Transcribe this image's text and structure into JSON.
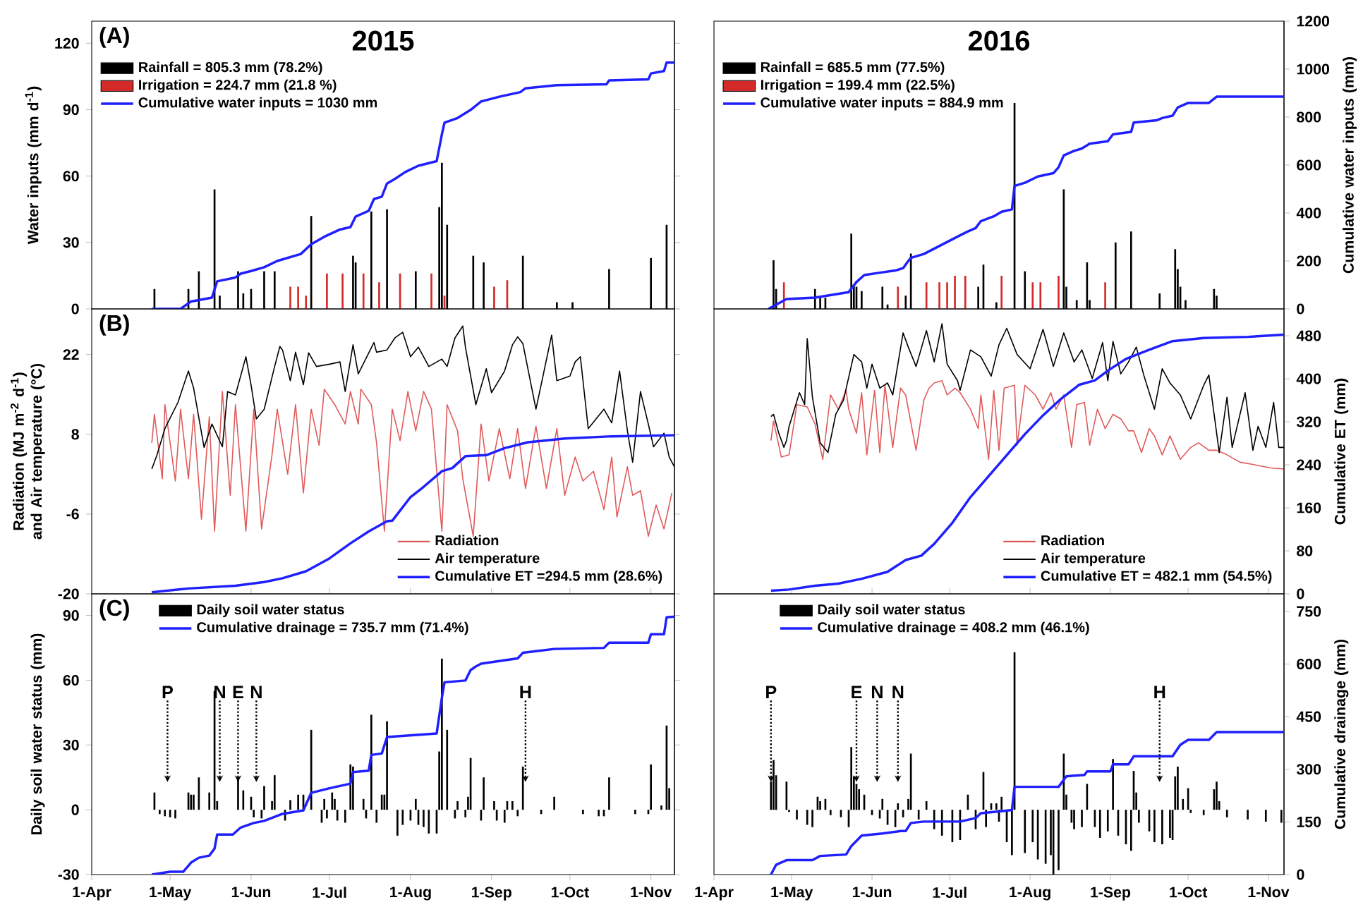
{
  "chart_data": [
    {
      "type": "bar",
      "title": "2015",
      "annotations": [
        "(A)"
      ],
      "ylabel": "Water inputs (mm d$^{-1}$)",
      "xlim": [
        "2015-04-01",
        "2015-11-10"
      ],
      "ylim": [
        0,
        130
      ],
      "yticks": [
        0,
        30,
        60,
        90,
        120
      ],
      "y2lim": [
        0,
        1200
      ],
      "tick_labels": "y",
      "legend": "top left",
      "series": [
        {
          "name": "Rainfall = 805.3 mm (78.2%)",
          "color": "#000000",
          "x": [
            "2015-04-25",
            "2015-05-08",
            "2015-05-12",
            "2015-05-18",
            "2015-05-20",
            "2015-05-27",
            "2015-05-29",
            "2015-06-01",
            "2015-06-06",
            "2015-06-10",
            "2015-06-24",
            "2015-07-10",
            "2015-07-11",
            "2015-07-17",
            "2015-07-23",
            "2015-08-03",
            "2015-08-12",
            "2015-08-13",
            "2015-08-15",
            "2015-08-25",
            "2015-08-29",
            "2015-09-13",
            "2015-09-26",
            "2015-10-02",
            "2015-10-16",
            "2015-11-01",
            "2015-11-07"
          ],
          "values": [
            9,
            9,
            17,
            54,
            6,
            17,
            7,
            9,
            17,
            17,
            42,
            24,
            21,
            44,
            45,
            17,
            46,
            66,
            38,
            24,
            21,
            24,
            3,
            3,
            18,
            23,
            38
          ]
        },
        {
          "name": "Irrigation = 224.7 mm (21.8 %)",
          "color": "#d42a2a",
          "x": [
            "2015-06-16",
            "2015-06-19",
            "2015-06-22",
            "2015-06-30",
            "2015-07-06",
            "2015-07-14",
            "2015-07-20",
            "2015-07-28",
            "2015-08-09",
            "2015-08-14",
            "2015-09-02",
            "2015-09-07"
          ],
          "values": [
            10,
            10,
            6,
            16,
            16,
            16,
            12,
            16,
            16,
            6,
            10,
            13
          ]
        },
        {
          "name": "Cumulative water inputs = 1030 mm",
          "type": "line",
          "axis": "y2",
          "color": "#1f1fff",
          "x": [
            "2015-04-24",
            "2015-05-05",
            "2015-05-09",
            "2015-05-17",
            "2015-05-19",
            "2015-05-26",
            "2015-05-28",
            "2015-06-01",
            "2015-06-06",
            "2015-06-11",
            "2015-06-20",
            "2015-06-24",
            "2015-06-29",
            "2015-07-05",
            "2015-07-09",
            "2015-07-11",
            "2015-07-16",
            "2015-07-18",
            "2015-07-21",
            "2015-07-23",
            "2015-07-26",
            "2015-07-30",
            "2015-08-04",
            "2015-08-11",
            "2015-08-13",
            "2015-08-14",
            "2015-08-19",
            "2015-08-24",
            "2015-08-28",
            "2015-09-04",
            "2015-09-12",
            "2015-09-14",
            "2015-09-26",
            "2015-10-15",
            "2015-10-16",
            "2015-10-31",
            "2015-11-01",
            "2015-11-06",
            "2015-11-07",
            "2015-11-10"
          ],
          "values": [
            0,
            0,
            31,
            47,
            115,
            131,
            147,
            158,
            174,
            200,
            229,
            270,
            301,
            331,
            341,
            385,
            409,
            458,
            468,
            523,
            542,
            571,
            597,
            616,
            728,
            777,
            796,
            830,
            865,
            885,
            904,
            920,
            933,
            937,
            953,
            957,
            982,
            992,
            1027,
            1027
          ]
        }
      ]
    },
    {
      "type": "bar",
      "title": "2016",
      "y2label": "Cumulative water inputs (mm)",
      "xlim": [
        "2016-04-01",
        "2016-11-07"
      ],
      "ylim": [
        0,
        130
      ],
      "y2lim": [
        0,
        1200
      ],
      "y2ticks": [
        0,
        200,
        400,
        600,
        800,
        1000,
        1200
      ],
      "tick_labels": "y2",
      "legend": "top left",
      "series": [
        {
          "name": "Rainfall = 685.5 mm (77.5%)",
          "color": "#000000",
          "x": [
            "2016-04-24",
            "2016-04-25",
            "2016-05-10",
            "2016-05-12",
            "2016-05-14",
            "2016-05-24",
            "2016-05-25",
            "2016-05-26",
            "2016-05-28",
            "2016-06-05",
            "2016-06-07",
            "2016-06-14",
            "2016-06-16",
            "2016-07-12",
            "2016-07-14",
            "2016-07-19",
            "2016-07-26",
            "2016-07-30",
            "2016-08-14",
            "2016-08-15",
            "2016-08-19",
            "2016-08-23",
            "2016-08-24",
            "2016-09-03",
            "2016-09-09",
            "2016-09-20",
            "2016-09-26",
            "2016-09-27",
            "2016-09-28",
            "2016-09-30",
            "2016-10-11",
            "2016-10-12"
          ],
          "values": [
            22,
            9,
            9,
            5,
            5,
            34,
            11,
            10,
            8,
            10,
            2,
            6,
            25,
            10,
            20,
            3,
            93,
            17,
            54,
            10,
            4,
            21,
            4,
            30,
            35,
            7,
            27,
            18,
            10,
            4,
            9,
            6
          ]
        },
        {
          "name": "Irrigation = 199.4 mm (22.5%)",
          "color": "#d42a2a",
          "x": [
            "2016-04-28",
            "2016-06-11",
            "2016-06-22",
            "2016-06-27",
            "2016-06-30",
            "2016-07-03",
            "2016-07-07",
            "2016-07-21",
            "2016-08-02",
            "2016-08-05",
            "2016-08-12",
            "2016-08-30"
          ],
          "values": [
            12,
            10,
            12,
            12,
            12,
            15,
            15,
            15,
            12,
            12,
            15,
            12
          ]
        },
        {
          "name": "Cumulative water inputs = 884.9 mm",
          "type": "line",
          "axis": "y2",
          "color": "#1f1fff",
          "x": [
            "2016-04-22",
            "2016-04-29",
            "2016-05-10",
            "2016-05-23",
            "2016-05-26",
            "2016-05-29",
            "2016-06-04",
            "2016-06-10",
            "2016-06-13",
            "2016-06-15",
            "2016-06-16",
            "2016-06-21",
            "2016-06-28",
            "2016-07-05",
            "2016-07-08",
            "2016-07-11",
            "2016-07-13",
            "2016-07-18",
            "2016-07-21",
            "2016-07-25",
            "2016-07-26",
            "2016-07-30",
            "2016-08-04",
            "2016-08-10",
            "2016-08-12",
            "2016-08-14",
            "2016-08-18",
            "2016-08-21",
            "2016-08-24",
            "2016-08-31",
            "2016-09-02",
            "2016-09-09",
            "2016-09-10",
            "2016-09-19",
            "2016-09-21",
            "2016-09-25",
            "2016-09-27",
            "2016-10-01",
            "2016-10-09",
            "2016-10-12",
            "2016-11-07"
          ],
          "values": [
            0,
            41,
            47,
            70,
            112,
            141,
            151,
            160,
            170,
            200,
            213,
            229,
            268,
            307,
            323,
            337,
            366,
            386,
            405,
            415,
            513,
            526,
            552,
            566,
            591,
            640,
            659,
            669,
            689,
            699,
            728,
            738,
            777,
            787,
            796,
            806,
            840,
            859,
            859,
            885,
            885
          ]
        }
      ]
    },
    {
      "type": "line",
      "annotations": [
        "(B)"
      ],
      "ylabel": "Radiation (MJ m$^{-2}$ d$^{-1}$) and Air temperature (°C)",
      "xlim": [
        "2015-04-01",
        "2015-11-10"
      ],
      "ylim": [
        -20,
        30
      ],
      "yticks": [
        -20,
        -6,
        8,
        22
      ],
      "y2lim": [
        0,
        530
      ],
      "tick_labels": "y",
      "legend": "bottom right",
      "series": [
        {
          "name": "Radiation",
          "color": "#e05a5a",
          "x": [
            "2015-04-24",
            "2015-04-25",
            "2015-04-28",
            "2015-04-29",
            "2015-05-03",
            "2015-05-05",
            "2015-05-08",
            "2015-05-10",
            "2015-05-13",
            "2015-05-16",
            "2015-05-18",
            "2015-05-21",
            "2015-05-24",
            "2015-05-26",
            "2015-05-30",
            "2015-06-02",
            "2015-06-05",
            "2015-06-09",
            "2015-06-11",
            "2015-06-15",
            "2015-06-18",
            "2015-06-21",
            "2015-06-24",
            "2015-06-27",
            "2015-06-29",
            "2015-07-03",
            "2015-07-07",
            "2015-07-09",
            "2015-07-12",
            "2015-07-13",
            "2015-07-17",
            "2015-07-19",
            "2015-07-22",
            "2015-07-25",
            "2015-07-28",
            "2015-07-31",
            "2015-08-03",
            "2015-08-06",
            "2015-08-09",
            "2015-08-13",
            "2015-08-15",
            "2015-08-19",
            "2015-08-21",
            "2015-08-25",
            "2015-08-28",
            "2015-08-31",
            "2015-09-04",
            "2015-09-08",
            "2015-09-11",
            "2015-09-14",
            "2015-09-18",
            "2015-09-22",
            "2015-09-26",
            "2015-09-29",
            "2015-10-03",
            "2015-10-06",
            "2015-10-10",
            "2015-10-14",
            "2015-10-17",
            "2015-10-19",
            "2015-10-23",
            "2015-10-25",
            "2015-10-28",
            "2015-10-31",
            "2015-11-03",
            "2015-11-06",
            "2015-11-09"
          ],
          "values": [
            6.5,
            11.5,
            0.2,
            13.2,
            -0.2,
            12.4,
            0.2,
            11.5,
            -6.9,
            11.1,
            -9.0,
            15.5,
            -2.7,
            13.2,
            -9.0,
            12.4,
            -8.6,
            4.4,
            12.4,
            1.0,
            13.2,
            -2.3,
            12.4,
            6.1,
            15.9,
            13.2,
            9.8,
            15.5,
            9.8,
            15.9,
            13.2,
            6.5,
            -9.0,
            12.4,
            6.9,
            15.5,
            8.6,
            15.5,
            12.4,
            -9.0,
            13.2,
            8.6,
            0.2,
            -9.9,
            9.8,
            -0.2,
            9.0,
            0.2,
            9.0,
            -1.5,
            9.4,
            -1.5,
            9.0,
            -2.7,
            4.0,
            -0.2,
            1.5,
            -5.2,
            4.0,
            -6.5,
            2.3,
            -2.7,
            -1.9,
            -9.9,
            -4.4,
            -8.6,
            -2.3
          ]
        },
        {
          "name": "Air temperature",
          "color": "#000000",
          "x": [
            "2015-04-24",
            "2015-04-26",
            "2015-04-29",
            "2015-05-04",
            "2015-05-08",
            "2015-05-10",
            "2015-05-14",
            "2015-05-17",
            "2015-05-21",
            "2015-05-23",
            "2015-05-26",
            "2015-05-30",
            "2015-06-01",
            "2015-06-03",
            "2015-06-06",
            "2015-06-10",
            "2015-06-12",
            "2015-06-13",
            "2015-06-16",
            "2015-06-18",
            "2015-06-21",
            "2015-06-23",
            "2015-06-26",
            "2015-07-01",
            "2015-07-05",
            "2015-07-07",
            "2015-07-10",
            "2015-07-12",
            "2015-07-18",
            "2015-07-19",
            "2015-07-23",
            "2015-07-26",
            "2015-07-29",
            "2015-08-01",
            "2015-08-04",
            "2015-08-08",
            "2015-08-13",
            "2015-08-15",
            "2015-08-18",
            "2015-08-21",
            "2015-08-22",
            "2015-08-26",
            "2015-08-30",
            "2015-09-01",
            "2015-09-06",
            "2015-09-09",
            "2015-09-11",
            "2015-09-13",
            "2015-09-18",
            "2015-09-24",
            "2015-09-26",
            "2015-10-01",
            "2015-10-03",
            "2015-10-05",
            "2015-10-08",
            "2015-10-14",
            "2015-10-17",
            "2015-10-20",
            "2015-10-23",
            "2015-10-25",
            "2015-10-28",
            "2015-10-31",
            "2015-11-02",
            "2015-11-06",
            "2015-11-08",
            "2015-11-10"
          ],
          "values": [
            1.9,
            4.4,
            9.0,
            13.6,
            19.1,
            16.1,
            5.7,
            9.8,
            5.8,
            15.5,
            14.9,
            21.6,
            16.6,
            10.7,
            12.4,
            19.9,
            23.4,
            22.8,
            17.4,
            22.4,
            16.7,
            22.3,
            19.9,
            20.3,
            20.7,
            15.5,
            23.7,
            18.6,
            24.1,
            22.4,
            22.8,
            24.9,
            25.9,
            21.6,
            23.3,
            19.9,
            21.2,
            19.9,
            24.9,
            27.0,
            23.3,
            13.2,
            19.5,
            15.3,
            19.1,
            23.7,
            25.1,
            23.9,
            12.4,
            25.4,
            17.4,
            18.2,
            20.7,
            21.6,
            9.0,
            12.4,
            10.0,
            19.1,
            8.6,
            3.1,
            15.5,
            9.8,
            5.8,
            8.2,
            4.0,
            2.3
          ]
        },
        {
          "name": "Cumulative ET =294.5 mm (28.6%)",
          "type": "line",
          "axis": "y2",
          "color": "#1f1fff",
          "x": [
            "2015-04-24",
            "2015-05-08",
            "2015-05-26",
            "2015-06-06",
            "2015-06-13",
            "2015-06-22",
            "2015-07-01",
            "2015-07-09",
            "2015-07-16",
            "2015-07-23",
            "2015-07-25",
            "2015-08-01",
            "2015-08-06",
            "2015-08-13",
            "2015-08-17",
            "2015-08-22",
            "2015-08-30",
            "2015-09-06",
            "2015-09-15",
            "2015-09-29",
            "2015-10-17",
            "2015-11-10"
          ],
          "values": [
            3,
            10,
            15,
            22,
            29,
            42,
            66,
            94,
            116,
            135,
            136,
            180,
            199,
            228,
            234,
            256,
            258,
            271,
            282,
            289,
            293,
            295
          ]
        }
      ]
    },
    {
      "type": "line",
      "y2label": "Cumulative ET (mm)",
      "xlim": [
        "2016-04-01",
        "2016-11-07"
      ],
      "ylim": [
        -20,
        30
      ],
      "y2lim": [
        0,
        530
      ],
      "y2ticks": [
        0,
        80,
        160,
        240,
        320,
        400,
        480
      ],
      "tick_labels": "y2",
      "legend": "bottom right",
      "series": [
        {
          "name": "Radiation",
          "color": "#e05a5a",
          "x": [
            "2016-04-23",
            "2016-04-24",
            "2016-04-27",
            "2016-04-30",
            "2016-05-03",
            "2016-05-07",
            "2016-05-10",
            "2016-05-13",
            "2016-05-16",
            "2016-05-19",
            "2016-05-22",
            "2016-05-23",
            "2016-05-26",
            "2016-05-28",
            "2016-05-30",
            "2016-06-02",
            "2016-06-04",
            "2016-06-06",
            "2016-06-09",
            "2016-06-12",
            "2016-06-14",
            "2016-06-18",
            "2016-06-21",
            "2016-06-23",
            "2016-06-25",
            "2016-06-28",
            "2016-06-30",
            "2016-07-03",
            "2016-07-05",
            "2016-07-09",
            "2016-07-12",
            "2016-07-13",
            "2016-07-16",
            "2016-07-18",
            "2016-07-20",
            "2016-07-22",
            "2016-07-26",
            "2016-07-27",
            "2016-07-30",
            "2016-08-03",
            "2016-08-06",
            "2016-08-09",
            "2016-08-11",
            "2016-08-14",
            "2016-08-17",
            "2016-08-19",
            "2016-08-22",
            "2016-08-24",
            "2016-08-27",
            "2016-08-30",
            "2016-09-02",
            "2016-09-05",
            "2016-09-08",
            "2016-09-10",
            "2016-09-13",
            "2016-09-16",
            "2016-09-18",
            "2016-09-21",
            "2016-09-24",
            "2016-09-28",
            "2016-10-02",
            "2016-10-05",
            "2016-10-09",
            "2016-10-12",
            "2016-10-16",
            "2016-10-21",
            "2016-10-26",
            "2016-11-02",
            "2016-11-07"
          ],
          "values": [
            6.9,
            10.3,
            4.0,
            4.4,
            13.2,
            12.8,
            9.8,
            3.6,
            14.9,
            12.4,
            15.7,
            12.4,
            8.2,
            15.3,
            4.4,
            15.7,
            4.8,
            16.6,
            5.7,
            16.1,
            14.9,
            5.2,
            14.0,
            16.1,
            17.0,
            17.4,
            14.9,
            16.1,
            15.3,
            12.4,
            9.0,
            14.9,
            3.6,
            15.7,
            5.2,
            16.1,
            16.6,
            6.1,
            16.6,
            14.9,
            12.4,
            15.3,
            12.4,
            14.9,
            5.7,
            13.2,
            13.6,
            6.1,
            12.4,
            9.0,
            11.5,
            10.7,
            8.6,
            8.6,
            4.8,
            9.0,
            7.7,
            4.4,
            7.7,
            3.6,
            5.7,
            6.5,
            5.2,
            5.2,
            4.4,
            3.1,
            2.7,
            2.1,
            1.9
          ]
        },
        {
          "name": "Air temperature",
          "color": "#000000",
          "x": [
            "2016-04-23",
            "2016-04-24",
            "2016-04-26",
            "2016-04-28",
            "2016-04-29",
            "2016-04-30",
            "2016-05-04",
            "2016-05-06",
            "2016-05-07",
            "2016-05-09",
            "2016-05-12",
            "2016-05-15",
            "2016-05-18",
            "2016-05-21",
            "2016-05-25",
            "2016-05-28",
            "2016-05-30",
            "2016-06-01",
            "2016-06-04",
            "2016-06-07",
            "2016-06-09",
            "2016-06-13",
            "2016-06-15",
            "2016-06-18",
            "2016-06-22",
            "2016-06-25",
            "2016-06-28",
            "2016-06-30",
            "2016-07-04",
            "2016-07-05",
            "2016-07-09",
            "2016-07-13",
            "2016-07-17",
            "2016-07-20",
            "2016-07-23",
            "2016-07-27",
            "2016-08-01",
            "2016-08-06",
            "2016-08-10",
            "2016-08-14",
            "2016-08-18",
            "2016-08-21",
            "2016-08-25",
            "2016-08-29",
            "2016-08-31",
            "2016-09-02",
            "2016-09-05",
            "2016-09-08",
            "2016-09-11",
            "2016-09-14",
            "2016-09-18",
            "2016-09-21",
            "2016-09-24",
            "2016-09-28",
            "2016-10-02",
            "2016-10-07",
            "2016-10-09",
            "2016-10-13",
            "2016-10-16",
            "2016-10-18",
            "2016-10-23",
            "2016-10-26",
            "2016-10-28",
            "2016-10-31",
            "2016-11-03",
            "2016-11-05",
            "2016-11-07"
          ],
          "values": [
            11.1,
            11.5,
            8.2,
            5.7,
            6.9,
            9.4,
            15.3,
            13.2,
            24.8,
            14.5,
            6.5,
            4.8,
            11.5,
            14.0,
            22.0,
            20.7,
            16.1,
            20.3,
            16.1,
            17.0,
            14.9,
            25.8,
            23.3,
            19.9,
            26.2,
            20.7,
            27.4,
            20.3,
            17.4,
            15.7,
            22.8,
            21.6,
            18.2,
            23.7,
            26.6,
            22.0,
            19.5,
            26.4,
            19.9,
            25.8,
            20.7,
            22.8,
            17.8,
            24.1,
            17.4,
            24.3,
            18.6,
            20.7,
            23.3,
            18.2,
            12.4,
            19.5,
            17.0,
            14.9,
            10.7,
            16.6,
            18.4,
            4.8,
            14.5,
            5.7,
            15.3,
            5.2,
            9.4,
            5.7,
            13.6,
            5.7,
            5.7
          ]
        },
        {
          "name": "Cumulative ET = 482.1 mm (54.5%)",
          "type": "line",
          "axis": "y2",
          "color": "#1f1fff",
          "x": [
            "2016-04-23",
            "2016-04-30",
            "2016-05-10",
            "2016-05-19",
            "2016-05-28",
            "2016-06-07",
            "2016-06-14",
            "2016-06-20",
            "2016-06-25",
            "2016-07-02",
            "2016-07-09",
            "2016-07-16",
            "2016-07-23",
            "2016-07-30",
            "2016-08-06",
            "2016-08-13",
            "2016-08-20",
            "2016-08-26",
            "2016-08-31",
            "2016-09-07",
            "2016-09-16",
            "2016-09-25",
            "2016-10-07",
            "2016-10-24",
            "2016-11-07"
          ],
          "values": [
            6,
            8,
            15,
            19,
            28,
            41,
            63,
            71,
            93,
            132,
            180,
            219,
            258,
            297,
            332,
            363,
            389,
            397,
            415,
            437,
            454,
            470,
            476,
            478,
            482
          ]
        }
      ]
    },
    {
      "type": "bar",
      "annotations": [
        "(C)",
        {
          "text": "P",
          "x": "2015-04-30"
        },
        {
          "text": "N",
          "x": "2015-05-20"
        },
        {
          "text": "E",
          "x": "2015-05-27"
        },
        {
          "text": "N",
          "x": "2015-06-03"
        },
        {
          "text": "H",
          "x": "2015-09-14"
        }
      ],
      "ylabel": "Daily soil water status (mm)",
      "xlim": [
        "2015-04-01",
        "2015-11-10"
      ],
      "xticks": [
        {
          "value": "2015-04-01",
          "label": "1-Apr"
        },
        {
          "value": "2015-05-01",
          "label": "1-May"
        },
        {
          "value": "2015-06-01",
          "label": "1-Jun"
        },
        {
          "value": "2015-07-01",
          "label": "1-Jul"
        },
        {
          "value": "2015-08-01",
          "label": "1-Aug"
        },
        {
          "value": "2015-09-01",
          "label": "1-Sep"
        },
        {
          "value": "2015-10-01",
          "label": "1-Oct"
        },
        {
          "value": "2015-11-01",
          "label": "1-Nov"
        }
      ],
      "ylim": [
        -30,
        100
      ],
      "yticks": [
        -30,
        0,
        30,
        60,
        90
      ],
      "y2lim": [
        0,
        800
      ],
      "tick_labels": "xy",
      "legend": "top left",
      "series": [
        {
          "name": "Daily soil water status",
          "color": "#000000",
          "x": [
            "2015-04-25",
            "2015-04-27",
            "2015-04-29",
            "2015-05-01",
            "2015-05-03",
            "2015-05-08",
            "2015-05-09",
            "2015-05-10",
            "2015-05-12",
            "2015-05-16",
            "2015-05-18",
            "2015-05-19",
            "2015-05-27",
            "2015-05-29",
            "2015-06-01",
            "2015-06-02",
            "2015-06-05",
            "2015-06-06",
            "2015-06-09",
            "2015-06-10",
            "2015-06-14",
            "2015-06-16",
            "2015-06-19",
            "2015-06-21",
            "2015-06-24",
            "2015-06-28",
            "2015-06-29",
            "2015-06-30",
            "2015-07-02",
            "2015-07-03",
            "2015-07-04",
            "2015-07-07",
            "2015-07-09",
            "2015-07-10",
            "2015-07-14",
            "2015-07-15",
            "2015-07-17",
            "2015-07-19",
            "2015-07-21",
            "2015-07-22",
            "2015-07-23",
            "2015-07-27",
            "2015-07-29",
            "2015-08-01",
            "2015-08-03",
            "2015-08-04",
            "2015-08-06",
            "2015-08-08",
            "2015-08-11",
            "2015-08-12",
            "2015-08-13",
            "2015-08-15",
            "2015-08-18",
            "2015-08-19",
            "2015-08-22",
            "2015-08-23",
            "2015-08-24",
            "2015-08-28",
            "2015-08-29",
            "2015-09-02",
            "2015-09-03",
            "2015-09-06",
            "2015-09-07",
            "2015-09-09",
            "2015-09-11",
            "2015-09-13",
            "2015-09-20",
            "2015-09-25",
            "2015-10-06",
            "2015-10-12",
            "2015-10-14",
            "2015-10-16",
            "2015-10-26",
            "2015-10-31",
            "2015-11-01",
            "2015-11-05",
            "2015-11-07",
            "2015-11-08"
          ],
          "values": [
            8,
            -2,
            -3,
            -3.5,
            -4,
            8,
            7,
            7,
            15,
            8,
            55,
            4,
            14,
            9,
            6,
            -3.5,
            -4,
            11,
            4,
            16,
            -5,
            4.5,
            7,
            7,
            37,
            -6,
            5,
            -4,
            8,
            5,
            -5,
            -6,
            21,
            20,
            5,
            -4,
            44,
            -6,
            7,
            7,
            41,
            -12,
            -7,
            -5,
            5,
            -7,
            -8,
            -11,
            -11,
            27,
            70,
            37,
            -4,
            4,
            -3.5,
            6,
            24,
            -5,
            15,
            4,
            -5,
            -6,
            4,
            4,
            -3,
            20,
            -2,
            6,
            -2,
            -3,
            -3,
            15,
            -2,
            -2,
            21,
            2,
            39,
            10
          ]
        },
        {
          "name": "Cumulative drainage = 735.7 mm (71.4%)",
          "type": "line",
          "axis": "y2",
          "color": "#1f1fff",
          "x": [
            "2015-04-24",
            "2015-05-01",
            "2015-05-06",
            "2015-05-09",
            "2015-05-12",
            "2015-05-16",
            "2015-05-18",
            "2015-05-19",
            "2015-05-25",
            "2015-05-28",
            "2015-06-02",
            "2015-06-06",
            "2015-06-13",
            "2015-06-21",
            "2015-06-24",
            "2015-07-01",
            "2015-07-09",
            "2015-07-10",
            "2015-07-16",
            "2015-07-17",
            "2015-07-21",
            "2015-07-23",
            "2015-08-11",
            "2015-08-13",
            "2015-08-14",
            "2015-08-22",
            "2015-08-24",
            "2015-08-26",
            "2015-08-28",
            "2015-09-11",
            "2015-09-13",
            "2015-09-25",
            "2015-10-14",
            "2015-10-16",
            "2015-10-31",
            "2015-11-01",
            "2015-11-06",
            "2015-11-07",
            "2015-11-10"
          ],
          "values": [
            0,
            8,
            8,
            34,
            48,
            54,
            74,
            114,
            114,
            134,
            147,
            153,
            173,
            183,
            233,
            246,
            259,
            292,
            296,
            341,
            345,
            392,
            402,
            504,
            548,
            553,
            583,
            593,
            601,
            616,
            632,
            643,
            646,
            661,
            661,
            685,
            685,
            733,
            735
          ]
        }
      ]
    },
    {
      "type": "bar",
      "annotations": [
        {
          "text": "P",
          "x": "2016-04-23"
        },
        {
          "text": "E",
          "x": "2016-05-26"
        },
        {
          "text": "N",
          "x": "2016-06-03"
        },
        {
          "text": "N",
          "x": "2016-06-11"
        },
        {
          "text": "H",
          "x": "2016-09-20"
        }
      ],
      "y2label": "Cumulative drainage (mm)",
      "xlim": [
        "2016-04-01",
        "2016-11-07"
      ],
      "xticks": [
        {
          "value": "2016-04-01",
          "label": "1-Apr"
        },
        {
          "value": "2016-05-01",
          "label": "1-May"
        },
        {
          "value": "2016-06-01",
          "label": "1-Jun"
        },
        {
          "value": "2016-07-01",
          "label": "1-Jul"
        },
        {
          "value": "2016-08-01",
          "label": "1-Aug"
        },
        {
          "value": "2016-09-01",
          "label": "1-Sep"
        },
        {
          "value": "2016-10-01",
          "label": "1-Oct"
        },
        {
          "value": "2016-11-01",
          "label": "1-Nov"
        }
      ],
      "ylim": [
        -30,
        100
      ],
      "y2lim": [
        0,
        800
      ],
      "y2ticks": [
        0,
        150,
        300,
        450,
        600,
        750
      ],
      "tick_labels": "xy2",
      "legend": "top left",
      "series": [
        {
          "name": "Daily soil water status",
          "color": "#000000",
          "x": [
            "2016-04-23",
            "2016-04-24",
            "2016-04-25",
            "2016-04-29",
            "2016-04-30",
            "2016-05-03",
            "2016-05-07",
            "2016-05-09",
            "2016-05-11",
            "2016-05-12",
            "2016-05-14",
            "2016-05-16",
            "2016-05-20",
            "2016-05-23",
            "2016-05-24",
            "2016-05-25",
            "2016-05-26",
            "2016-05-27",
            "2016-05-29",
            "2016-06-01",
            "2016-06-04",
            "2016-06-05",
            "2016-06-07",
            "2016-06-10",
            "2016-06-11",
            "2016-06-13",
            "2016-06-15",
            "2016-06-16",
            "2016-06-19",
            "2016-06-22",
            "2016-06-25",
            "2016-06-28",
            "2016-07-02",
            "2016-07-05",
            "2016-07-08",
            "2016-07-11",
            "2016-07-14",
            "2016-07-15",
            "2016-07-17",
            "2016-07-19",
            "2016-07-20",
            "2016-07-21",
            "2016-07-23",
            "2016-07-25",
            "2016-07-26",
            "2016-07-30",
            "2016-08-02",
            "2016-08-04",
            "2016-08-07",
            "2016-08-09",
            "2016-08-10",
            "2016-08-12",
            "2016-08-14",
            "2016-08-15",
            "2016-08-17",
            "2016-08-18",
            "2016-08-21",
            "2016-08-23",
            "2016-08-26",
            "2016-08-28",
            "2016-08-31",
            "2016-09-02",
            "2016-09-04",
            "2016-09-07",
            "2016-09-09",
            "2016-09-10",
            "2016-09-11",
            "2016-09-12",
            "2016-09-16",
            "2016-09-18",
            "2016-09-21",
            "2016-09-24",
            "2016-09-25",
            "2016-09-26",
            "2016-09-27",
            "2016-09-29",
            "2016-10-01",
            "2016-10-02",
            "2016-10-07",
            "2016-10-11",
            "2016-10-12",
            "2016-10-13",
            "2016-10-16",
            "2016-10-24",
            "2016-10-31",
            "2016-11-06"
          ],
          "values": [
            13,
            23,
            16,
            13,
            -1,
            -4.5,
            -7,
            -8,
            6,
            4,
            5,
            -2.5,
            -3.5,
            -8,
            29,
            15.5,
            12,
            9.5,
            7,
            -2.5,
            -4,
            5,
            -7,
            -8,
            3,
            -3.5,
            5,
            26,
            -4.5,
            4,
            -9,
            -12,
            -15,
            -14,
            7,
            -9,
            17.5,
            -8,
            3,
            3,
            -5.5,
            6,
            -15,
            -21,
            73,
            -20,
            -15,
            -23,
            -25,
            -21,
            -30,
            -28,
            26,
            7,
            -6,
            -9,
            -8,
            12,
            -8,
            -13,
            -10,
            23.5,
            -12,
            -16,
            -19,
            18,
            8,
            -6,
            -10,
            -15,
            -16,
            -13,
            -14,
            15.5,
            20,
            5,
            10,
            -1.5,
            -2.5,
            9.5,
            13,
            4,
            -3.5,
            -4.5,
            -5.5,
            -6
          ]
        },
        {
          "name": "Cumulative drainage = 408.2 mm (46.1%)",
          "type": "line",
          "axis": "y2",
          "color": "#1f1fff",
          "x": [
            "2016-04-23",
            "2016-04-25",
            "2016-04-29",
            "2016-05-09",
            "2016-05-12",
            "2016-05-22",
            "2016-05-24",
            "2016-05-28",
            "2016-06-05",
            "2016-06-12",
            "2016-06-14",
            "2016-06-16",
            "2016-06-21",
            "2016-07-05",
            "2016-07-11",
            "2016-07-13",
            "2016-07-20",
            "2016-07-25",
            "2016-07-26",
            "2016-08-12",
            "2016-08-15",
            "2016-08-22",
            "2016-08-23",
            "2016-09-01",
            "2016-09-02",
            "2016-09-08",
            "2016-09-10",
            "2016-09-25",
            "2016-09-28",
            "2016-10-01",
            "2016-10-09",
            "2016-10-12",
            "2016-11-07"
          ],
          "values": [
            0,
            28,
            41,
            41,
            53,
            57,
            81,
            111,
            117,
            124,
            124,
            147,
            151,
            151,
            161,
            175,
            180,
            184,
            250,
            250,
            280,
            284,
            294,
            294,
            314,
            314,
            337,
            337,
            370,
            384,
            384,
            406,
            406
          ]
        }
      ]
    }
  ]
}
